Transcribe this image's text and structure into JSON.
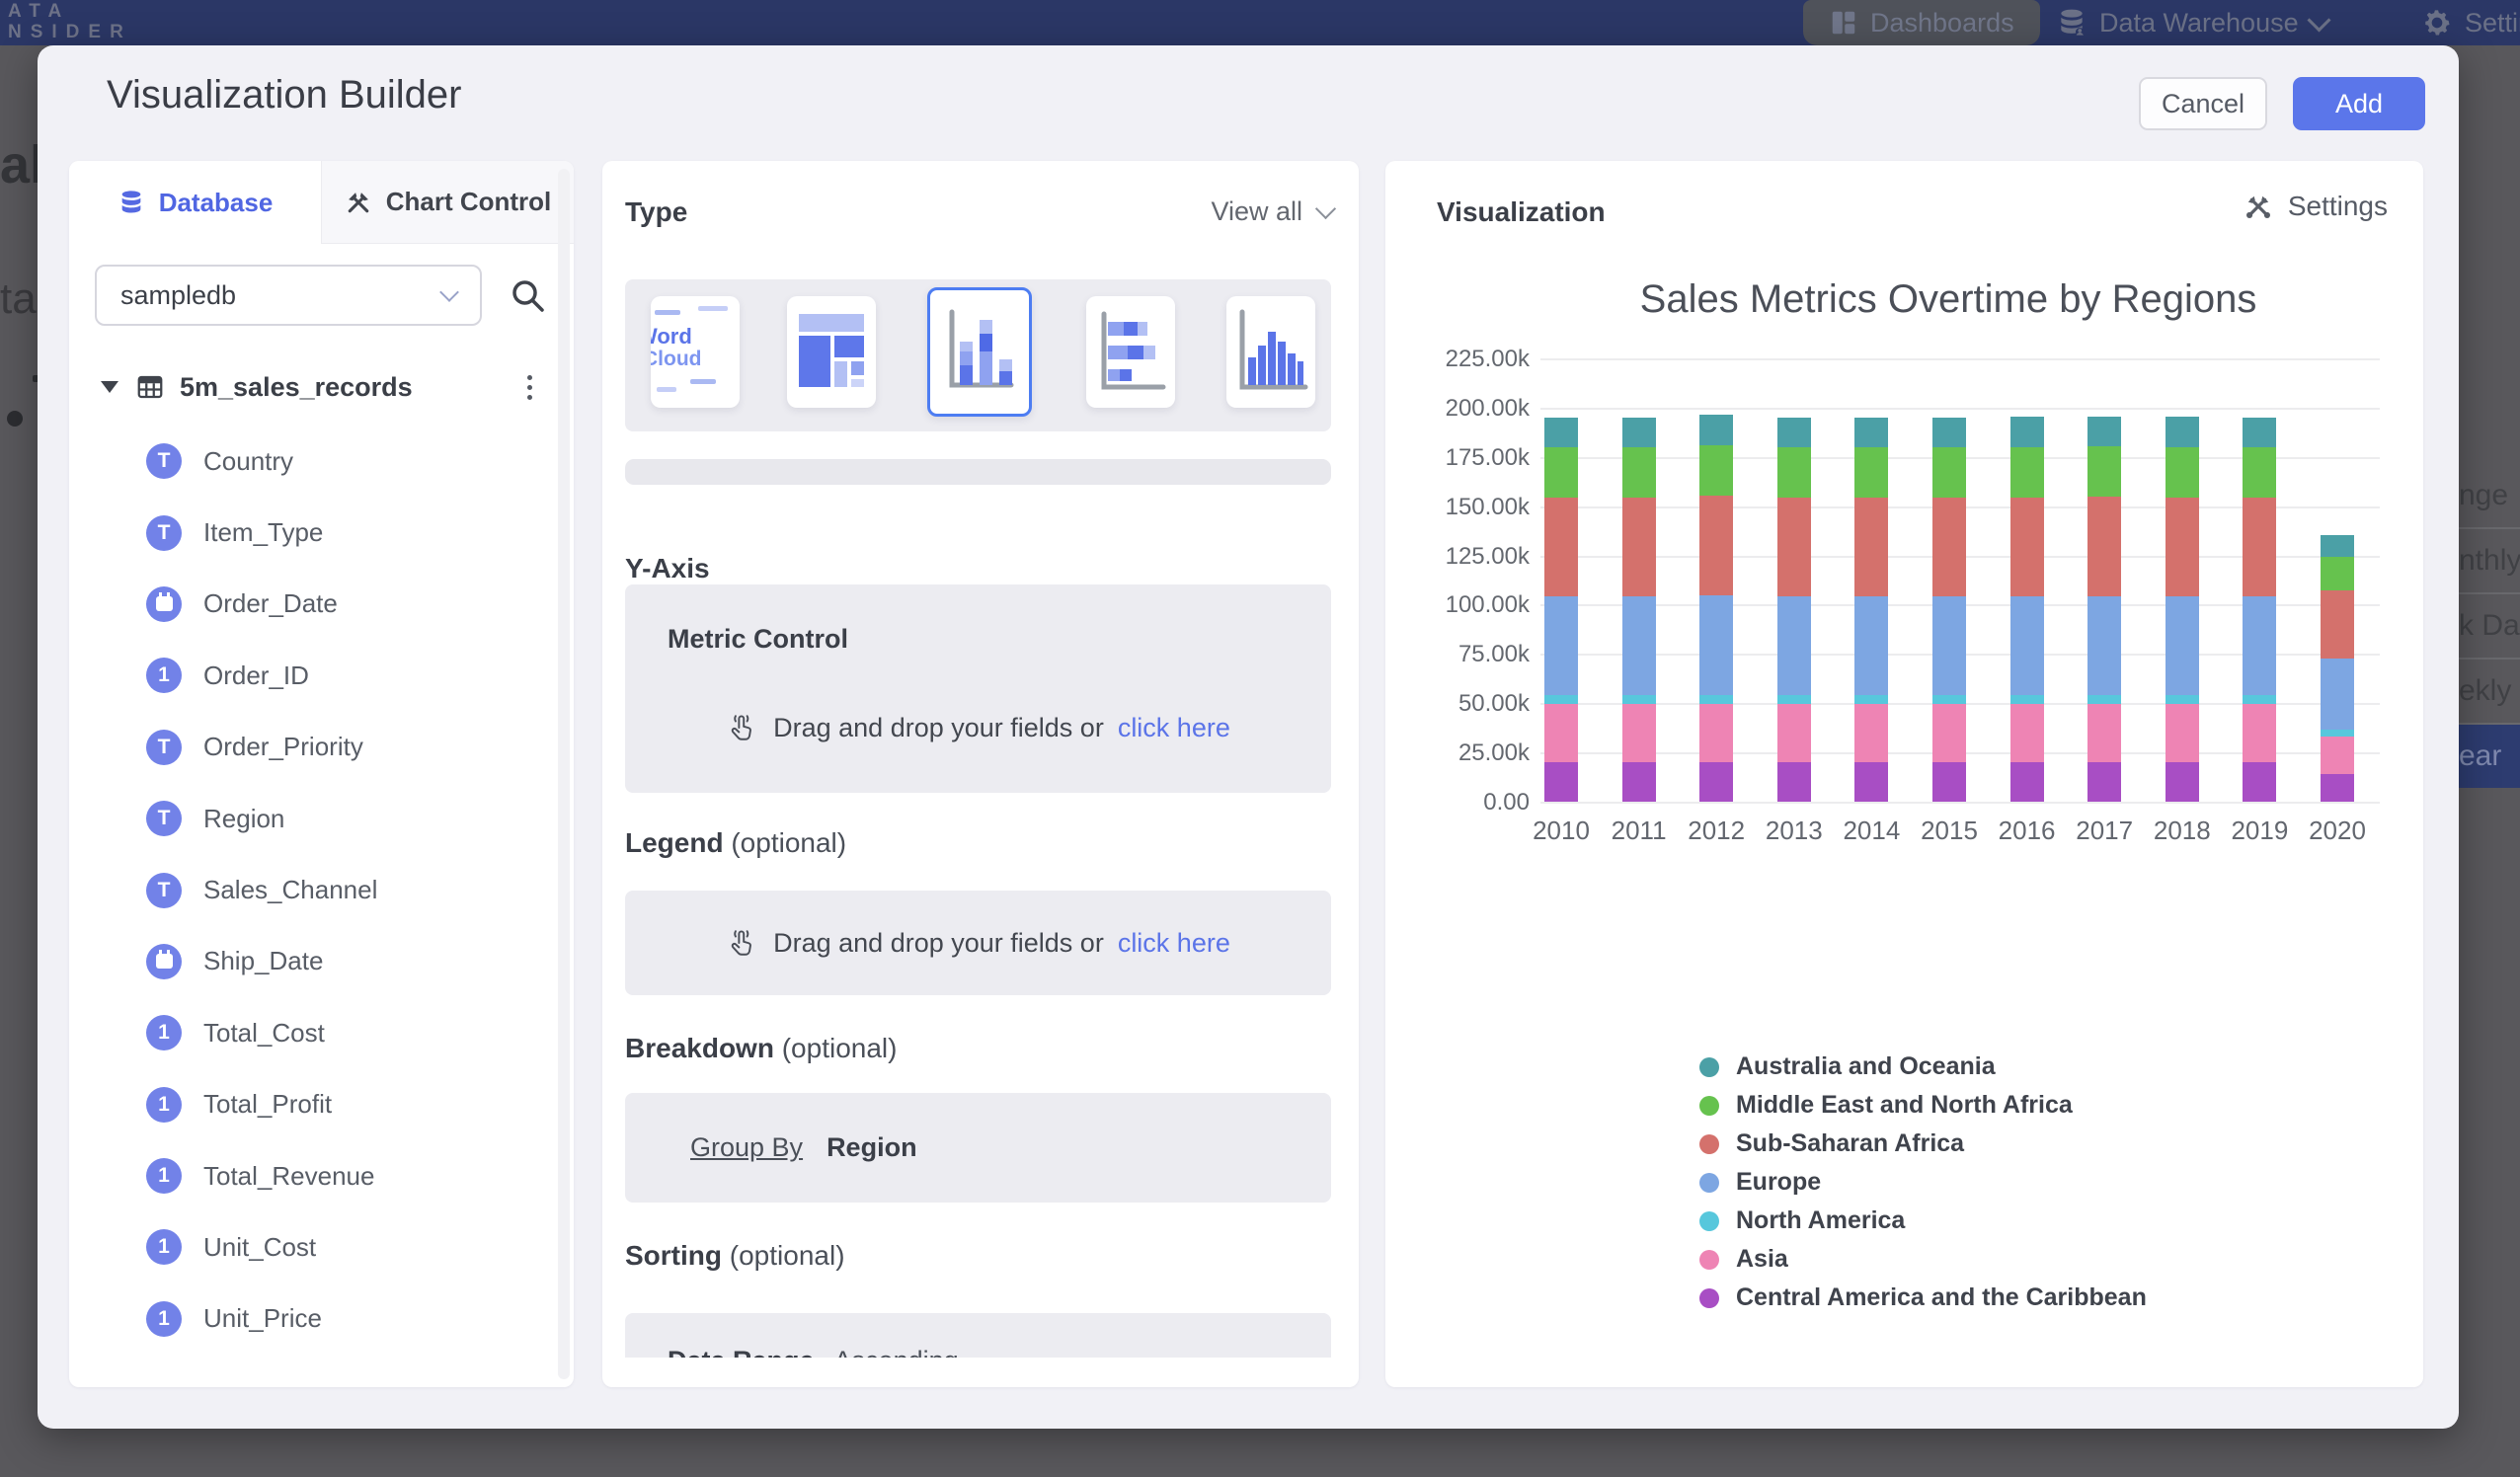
{
  "topbar": {
    "logo_line1": "ATA",
    "logo_line2": "NSIDER",
    "dashboards": "Dashboards",
    "data_warehouse": "Data Warehouse",
    "settings": "Settings"
  },
  "modal": {
    "title": "Visualization Builder",
    "cancel_label": "Cancel",
    "add_label": "Add"
  },
  "left_panel": {
    "tabs": [
      {
        "label": "Database"
      },
      {
        "label": "Chart Control"
      }
    ],
    "database_select": {
      "value": "sampledb"
    },
    "table": {
      "name": "5m_sales_records"
    },
    "fields": [
      {
        "name": "Country",
        "type": "text"
      },
      {
        "name": "Item_Type",
        "type": "text"
      },
      {
        "name": "Order_Date",
        "type": "date"
      },
      {
        "name": "Order_ID",
        "type": "number"
      },
      {
        "name": "Order_Priority",
        "type": "text"
      },
      {
        "name": "Region",
        "type": "text"
      },
      {
        "name": "Sales_Channel",
        "type": "text"
      },
      {
        "name": "Ship_Date",
        "type": "date"
      },
      {
        "name": "Total_Cost",
        "type": "number"
      },
      {
        "name": "Total_Profit",
        "type": "number"
      },
      {
        "name": "Total_Revenue",
        "type": "number"
      },
      {
        "name": "Unit_Cost",
        "type": "number"
      },
      {
        "name": "Unit_Price",
        "type": "number"
      }
    ]
  },
  "middle_panel": {
    "type_heading": "Type",
    "view_all": "View all",
    "wordcloud_card": {
      "word1": "Word",
      "word2": "Cloud"
    },
    "y_axis_heading": "Y-Axis",
    "metric_control_label": "Metric Control",
    "drop_text": "Drag and drop your fields or",
    "drop_link": "click here",
    "legend_heading": "Legend",
    "optional_suffix": "(optional)",
    "breakdown_heading": "Breakdown",
    "group_by_label": "Group By",
    "group_by_value": "Region",
    "sorting_heading": "Sorting",
    "sorting_field": "Data Range",
    "sorting_direction": "Ascending"
  },
  "right_panel": {
    "heading": "Visualization",
    "settings_label": "Settings"
  },
  "chart_data": {
    "type": "bar",
    "stacked": true,
    "title": "Sales Metrics Overtime by Regions",
    "x": [
      "2010",
      "2011",
      "2012",
      "2013",
      "2014",
      "2015",
      "2016",
      "2017",
      "2018",
      "2019",
      "2020"
    ],
    "y_ticks": [
      "225.00k",
      "200.00k",
      "175.00k",
      "150.00k",
      "125.00k",
      "100.00k",
      "75.00k",
      "50.00k",
      "25.00k",
      "0.00"
    ],
    "ylim_thousands": [
      0,
      225
    ],
    "grid": true,
    "legend_position": "bottom-left",
    "values_unit": "thousands",
    "stack_order": "bottom-to-top",
    "series": [
      {
        "name": "Central America and the Caribbean",
        "color": "#a84ec4",
        "values": [
          20,
          20,
          20,
          20,
          20,
          20,
          20,
          20,
          20,
          20,
          14
        ]
      },
      {
        "name": "Asia",
        "color": "#ee84b4",
        "values": [
          29.5,
          29.5,
          29.7,
          29.5,
          29.5,
          29.5,
          29.5,
          29.5,
          29.5,
          29.5,
          19
        ]
      },
      {
        "name": "North America",
        "color": "#57c7dc",
        "values": [
          4.5,
          4.5,
          4.5,
          4.5,
          4.5,
          4.5,
          4.5,
          4.5,
          4.5,
          4.5,
          3.5
        ]
      },
      {
        "name": "Europe",
        "color": "#7da6e2",
        "values": [
          50.5,
          50.5,
          50.8,
          50.5,
          50.5,
          50.5,
          50.5,
          50.5,
          50.5,
          50.5,
          36
        ]
      },
      {
        "name": "Sub-Saharan Africa",
        "color": "#d4716c",
        "values": [
          50,
          50,
          50.5,
          50,
          50,
          50,
          50,
          50.5,
          50,
          50,
          35
        ]
      },
      {
        "name": "Middle East and North Africa",
        "color": "#66c24e",
        "values": [
          25.5,
          25.5,
          25.5,
          25.5,
          25.5,
          25.5,
          25.5,
          25.5,
          25.5,
          25.5,
          17
        ]
      },
      {
        "name": "Australia and Oceania",
        "color": "#4ba0a6",
        "values": [
          15,
          15,
          15.5,
          15,
          15,
          15,
          15.5,
          15,
          15.5,
          15,
          11
        ]
      }
    ],
    "legend_order_top_to_bottom": [
      "Australia and Oceania",
      "Middle East and North Africa",
      "Sub-Saharan Africa",
      "Europe",
      "North America",
      "Asia",
      "Central America and the Caribbean"
    ]
  },
  "background": {
    "dim_color": "#59585c",
    "left_fragments": {
      "fragment1": "al",
      "fragment2": "ta"
    },
    "right_menu": {
      "items": [
        "nge",
        "nthly",
        "k Date",
        "ekly",
        "ear"
      ],
      "selected_index": 4,
      "selected_bg": "#2d3c70"
    }
  }
}
